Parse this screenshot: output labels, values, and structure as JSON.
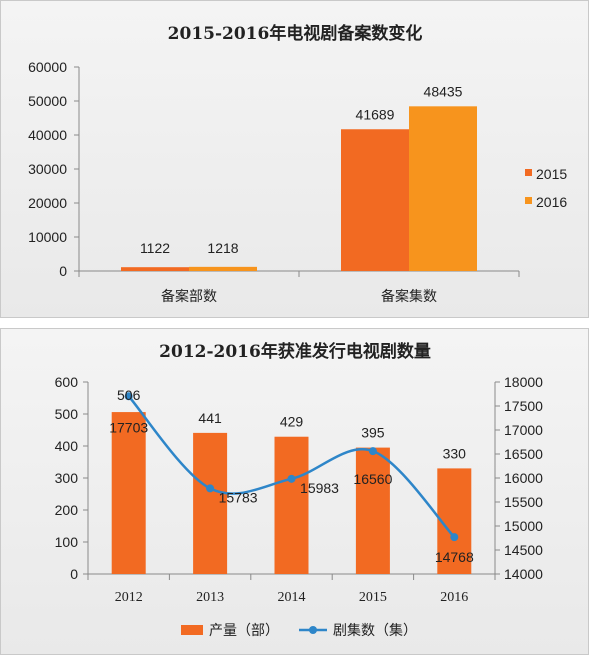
{
  "chart_data": [
    {
      "type": "bar",
      "title": "2015-2016年电视剧备案数变化",
      "categories": [
        "备案部数",
        "备案集数"
      ],
      "series": [
        {
          "name": "2015",
          "values": [
            1122,
            41689
          ],
          "color": "#f26a22"
        },
        {
          "name": "2016",
          "values": [
            1218,
            48435
          ],
          "color": "#f7941d"
        }
      ],
      "ylim": [
        0,
        60000
      ],
      "yticks": [
        0,
        10000,
        20000,
        30000,
        40000,
        50000,
        60000
      ],
      "legend": "right",
      "grid": false
    },
    {
      "type": "bar+line",
      "title": "2012-2016年获准发行电视剧数量",
      "categories": [
        "2012",
        "2013",
        "2014",
        "2015",
        "2016"
      ],
      "series": [
        {
          "name": "产量（部）",
          "type": "bar",
          "axis": "left",
          "values": [
            506,
            441,
            429,
            395,
            330
          ],
          "color": "#f26a22"
        },
        {
          "name": "剧集数（集）",
          "type": "line",
          "axis": "right",
          "values": [
            17703,
            15783,
            15983,
            16560,
            14768
          ],
          "color": "#2e86c9"
        }
      ],
      "ylim_left": [
        0,
        600
      ],
      "yticks_left": [
        0,
        100,
        200,
        300,
        400,
        500,
        600
      ],
      "ylim_right": [
        14000,
        18000
      ],
      "yticks_right": [
        14000,
        14500,
        15000,
        15500,
        16000,
        16500,
        17000,
        17500,
        18000
      ],
      "legend": "bottom",
      "grid": false
    }
  ]
}
